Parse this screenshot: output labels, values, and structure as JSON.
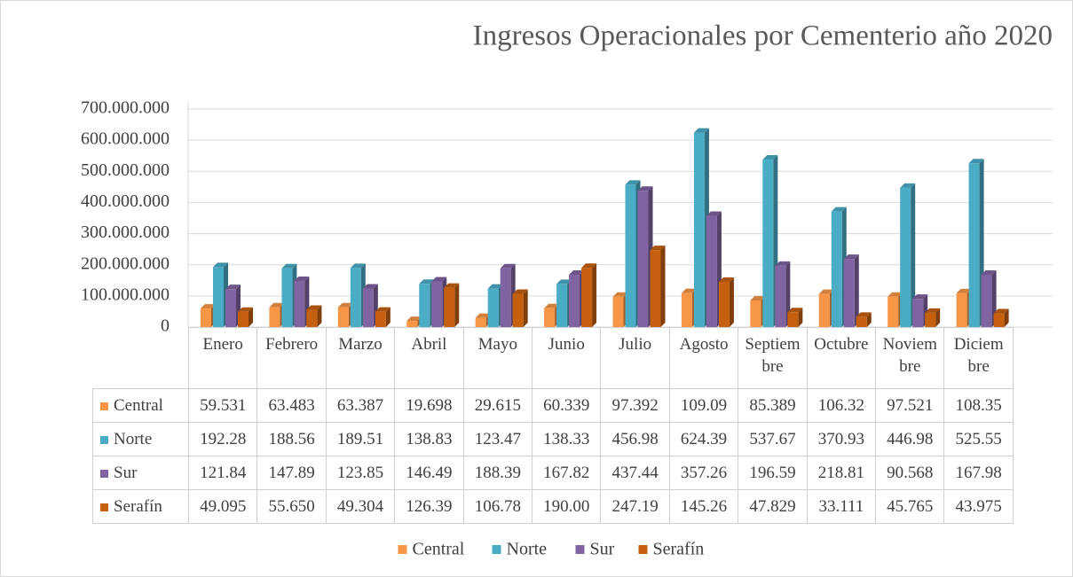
{
  "chart_data": {
    "type": "bar",
    "title": "Ingresos Operacionales por Cementerio año 2020",
    "categories": [
      "Enero",
      "Febrero",
      "Marzo",
      "Abril",
      "Mayo",
      "Junio",
      "Julio",
      "Agosto",
      "Septiembre",
      "Octubre",
      "Noviembre",
      "Diciembre"
    ],
    "series": [
      {
        "name": "Central",
        "color": "#f79646",
        "values": [
          59531000,
          63483000,
          63387000,
          19698000,
          29615000,
          60339000,
          97392000,
          109090000,
          85389000,
          106320000,
          97521000,
          108350000
        ],
        "value_labels": [
          "59.531",
          "63.483",
          "63.387",
          "19.698",
          "29.615",
          "60.339",
          "97.392",
          "109.09",
          "85.389",
          "106.32",
          "97.521",
          "108.35"
        ]
      },
      {
        "name": "Norte",
        "color": "#4bacc6",
        "values": [
          192280000,
          188560000,
          189510000,
          138830000,
          123470000,
          138330000,
          456980000,
          624390000,
          537670000,
          370930000,
          446980000,
          525550000
        ],
        "value_labels": [
          "192.28",
          "188.56",
          "189.51",
          "138.83",
          "123.47",
          "138.33",
          "456.98",
          "624.39",
          "537.67",
          "370.93",
          "446.98",
          "525.55"
        ]
      },
      {
        "name": "Sur",
        "color": "#8064a2",
        "values": [
          121840000,
          147890000,
          123850000,
          146490000,
          188390000,
          167820000,
          437440000,
          357260000,
          196590000,
          218810000,
          90568000,
          167980000
        ],
        "value_labels": [
          "121.84",
          "147.89",
          "123.85",
          "146.49",
          "188.39",
          "167.82",
          "437.44",
          "357.26",
          "196.59",
          "218.81",
          "90.568",
          "167.98"
        ]
      },
      {
        "name": "Serafín",
        "color": "#c5600f",
        "values": [
          49095000,
          55650000,
          49304000,
          126390000,
          106780000,
          190000000,
          247190000,
          145260000,
          47829000,
          33111000,
          45765000,
          43975000
        ],
        "value_labels": [
          "49.095",
          "55.650",
          "49.304",
          "126.39",
          "106.78",
          "190.00",
          "247.19",
          "145.26",
          "47.829",
          "33.111",
          "45.765",
          "43.975"
        ]
      }
    ],
    "ylim": [
      0,
      700000000
    ],
    "yticks": [
      0,
      {
        "value": 100000000,
        "label": "100.000.000"
      },
      {
        "value": 200000000,
        "label": "200.000.000"
      },
      {
        "value": 300000000,
        "label": "300.000.000"
      },
      {
        "value": 400000000,
        "label": "400.000.000"
      },
      {
        "value": 500000000,
        "label": "500.000.000"
      },
      {
        "value": 600000000,
        "label": "600.000.000"
      },
      {
        "value": 700000000,
        "label": "700.000.000"
      }
    ],
    "grid": true,
    "legend": "bottom"
  }
}
